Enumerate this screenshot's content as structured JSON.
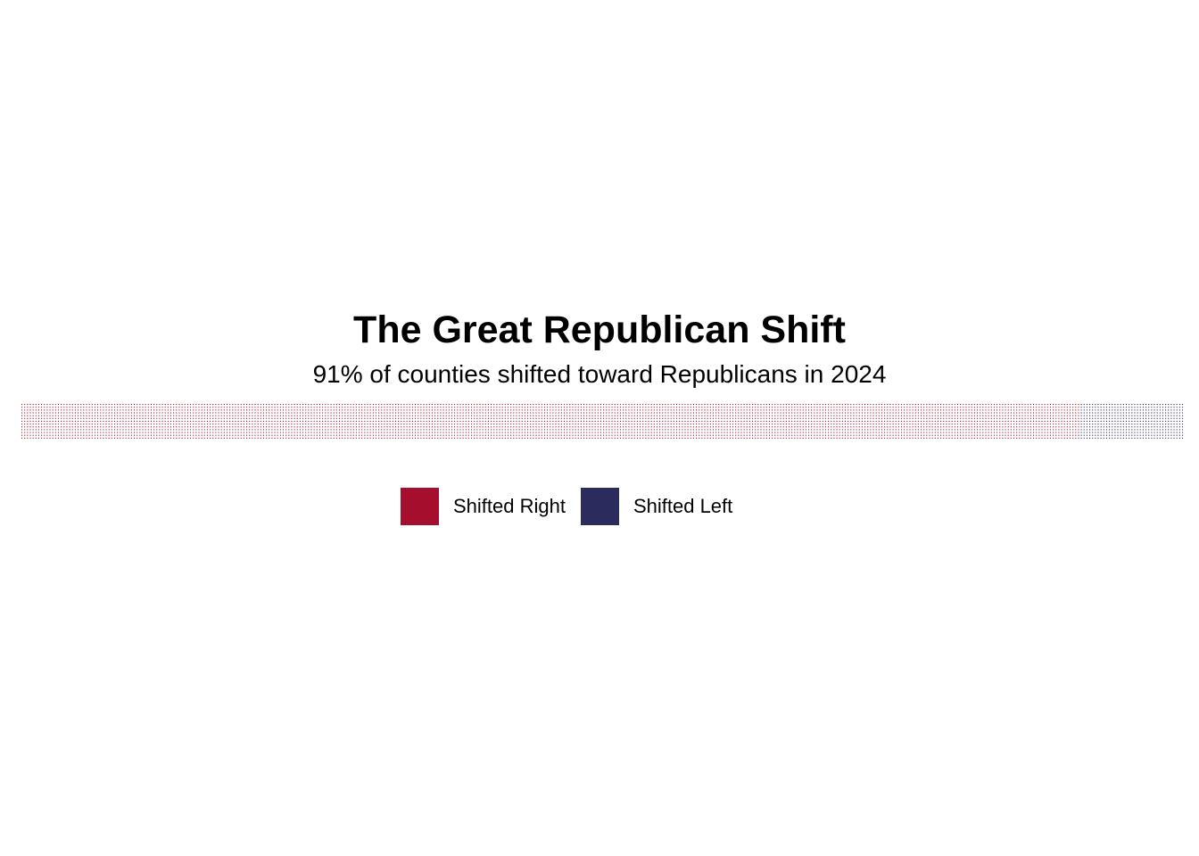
{
  "chart_data": {
    "type": "waffle",
    "title": "The Great Republican Shift",
    "subtitle": "91% of counties shifted toward Republicans in 2024",
    "categories": [
      "Shifted Right",
      "Shifted Left"
    ],
    "series": [
      {
        "name": "Shifted Right",
        "share_percent": 91,
        "color": "#a50f2d"
      },
      {
        "name": "Shifted Left",
        "share_percent": 9,
        "color": "#2b2b5e"
      }
    ],
    "legend": {
      "placement": "bottom-center",
      "items": [
        {
          "label": "Shifted Right",
          "color": "#a50f2d"
        },
        {
          "label": "Shifted Left",
          "color": "#2b2b5e"
        }
      ]
    },
    "grid": false
  }
}
